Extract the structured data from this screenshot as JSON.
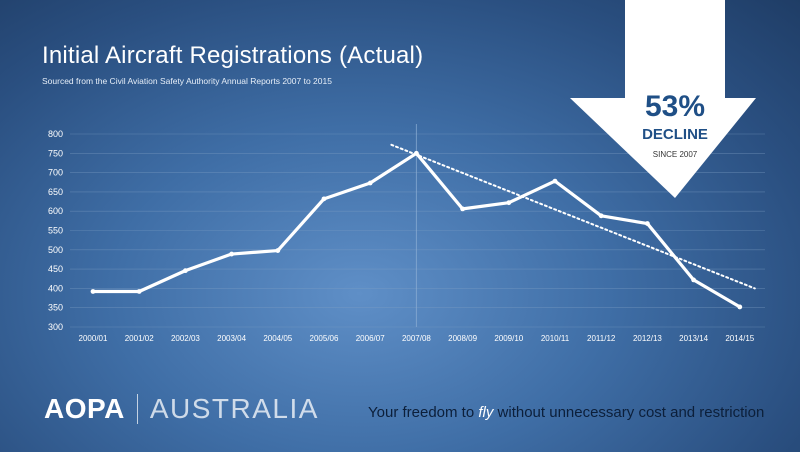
{
  "title": "Initial Aircraft Registrations (Actual)",
  "subtitle": "Sourced from the Civil Aviation Safety Authority Annual Reports 2007 to 2015",
  "callout": {
    "percent": "53%",
    "label": "DECLINE",
    "since": "SINCE 2007"
  },
  "logo": {
    "primary": "AOPA",
    "secondary": "AUSTRALIA"
  },
  "tagline": {
    "before": "Your freedom to ",
    "emphasis": "fly",
    "after": " without unnecessary cost and restriction"
  },
  "chart_data": {
    "type": "line",
    "title": "Initial Aircraft Registrations (Actual)",
    "categories": [
      "2000/01",
      "2001/02",
      "2002/03",
      "2003/04",
      "2004/05",
      "2005/06",
      "2006/07",
      "2007/08",
      "2008/09",
      "2009/10",
      "2010/11",
      "2011/12",
      "2012/13",
      "2013/14",
      "2014/15"
    ],
    "series": [
      {
        "values": [
          392,
          392,
          446,
          489,
          498,
          632,
          673,
          750,
          606,
          622,
          678,
          588,
          568,
          422,
          352
        ]
      }
    ],
    "trendline": {
      "style": "dotted",
      "start_value": 772,
      "end_value": 400,
      "from_category": "2007/08",
      "to_category": "2014/15"
    },
    "reference_line": {
      "category": "2007/08",
      "style": "vertical"
    },
    "ylim": [
      300,
      800
    ],
    "yticks": [
      300,
      350,
      400,
      450,
      500,
      550,
      600,
      650,
      700,
      750,
      800
    ],
    "grid": true,
    "colors": {
      "line": "#ffffff",
      "grid": "#7f9fc4",
      "trend": "#ffffff"
    }
  }
}
